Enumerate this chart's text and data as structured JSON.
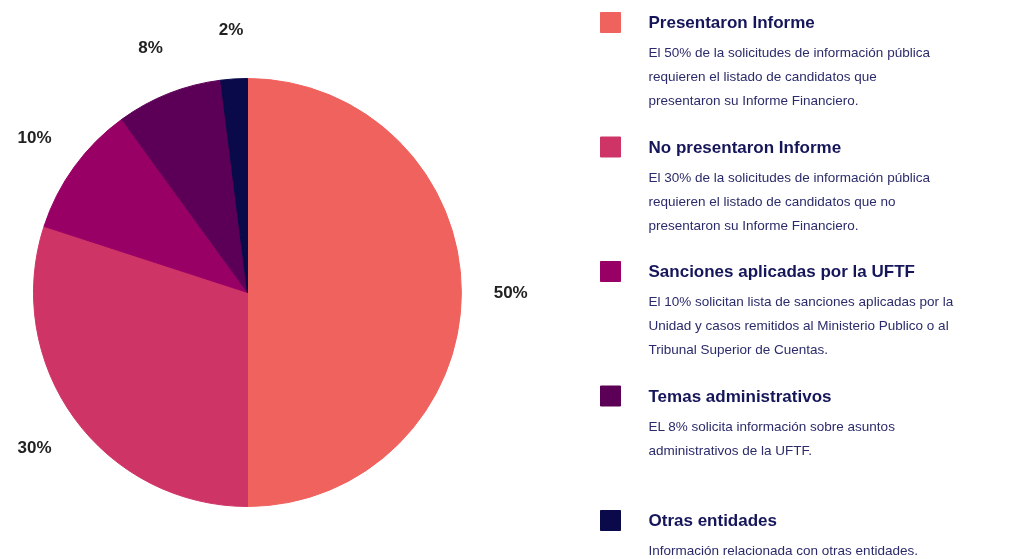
{
  "chart_data": {
    "type": "pie",
    "categories": [
      "Presentaron Informe",
      "No presentaron Informe",
      "Sanciones aplicadas por la UFTF",
      "Temas administrativos",
      "Otras entidades"
    ],
    "values": [
      50,
      30,
      10,
      8,
      2
    ],
    "colors": [
      "#f0625d",
      "#cf3466",
      "#990066",
      "#5c0057",
      "#0a0a4a"
    ],
    "value_labels": [
      "50%",
      "30%",
      "10%",
      "8%",
      "2%"
    ],
    "legend": "right",
    "annotations": [
      "El 50% de la solicitudes de información pública\nrequieren el listado de candidatos que\npresentaron su Informe Financiero.",
      "El 30% de la solicitudes de información pública\nrequieren el listado de candidatos que no\npresentaron su Informe Financiero.",
      "El 10% solicitan lista de sanciones aplicadas por la\nUnidad y casos remitidos al Ministerio Publico o al\nTribunal Superior de Cuentas.",
      "EL 8% solicita información sobre asuntos\nadministrativos de la UFTF.",
      "Información relacionada con otras entidades."
    ]
  }
}
